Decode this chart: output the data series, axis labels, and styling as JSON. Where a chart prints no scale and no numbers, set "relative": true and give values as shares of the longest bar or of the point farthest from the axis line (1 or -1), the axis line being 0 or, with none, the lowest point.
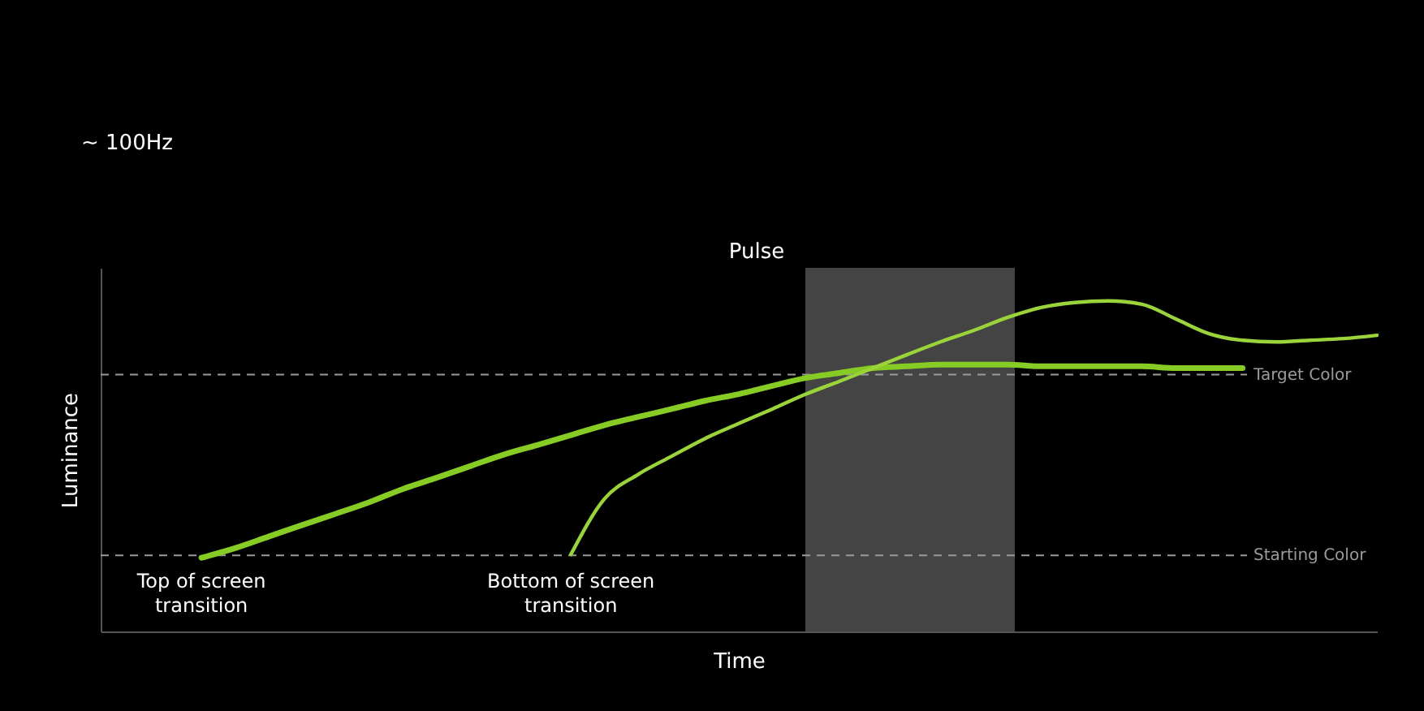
{
  "chart_data": {
    "type": "line",
    "relative": true,
    "xlabel": "Time",
    "ylabel": "Luminance",
    "categories": [
      null,
      null,
      null,
      null,
      null,
      null,
      null,
      null,
      null,
      null,
      null,
      null,
      null,
      null,
      null,
      null,
      null,
      null,
      null,
      null,
      null,
      null,
      null,
      null,
      null,
      null,
      null,
      null,
      null,
      null,
      null,
      null,
      null,
      null,
      null,
      null,
      null,
      null,
      null
    ],
    "series": [
      {
        "name": "Top of screen\ntransition",
        "color": "#86cc24",
        "values": [
          null,
          null,
          null,
          0.223,
          0.252,
          0.287,
          0.322,
          0.356,
          0.391,
          0.431,
          0.465,
          0.5,
          0.535,
          0.564,
          0.594,
          0.624,
          0.649,
          0.673,
          0.698,
          0.718,
          0.743,
          0.767,
          0.782,
          0.797,
          0.802,
          0.807,
          0.807,
          0.807,
          0.802,
          0.802,
          0.802,
          0.802,
          0.797,
          0.797,
          0.797,
          null,
          null,
          null,
          null
        ]
      },
      {
        "name": "Bottom of screen\ntransition",
        "color": "#9ad43a",
        "values": [
          null,
          null,
          null,
          null,
          null,
          null,
          null,
          null,
          null,
          null,
          null,
          null,
          null,
          null,
          0.233,
          0.401,
          0.475,
          0.53,
          0.584,
          0.629,
          0.673,
          0.718,
          0.757,
          0.797,
          0.837,
          0.876,
          0.911,
          0.95,
          0.98,
          0.995,
          1,
          0.99,
          0.946,
          0.901,
          0.881,
          0.876,
          0.881,
          0.886,
          0.896
        ]
      }
    ],
    "ref_lines": [
      {
        "axis": "y",
        "value": 0.777,
        "label": "Target Color",
        "color": "#9a9a9a",
        "line_style": "dashed"
      },
      {
        "axis": "y",
        "value": 0.23,
        "label": "Starting Color",
        "color": "#9a9a9a",
        "line_style": "dashed"
      }
    ],
    "annotations": [
      "~ 100Hz",
      "Pulse"
    ],
    "grid": false,
    "tick_labels": false,
    "marker": "none",
    "line_style": "solid"
  }
}
